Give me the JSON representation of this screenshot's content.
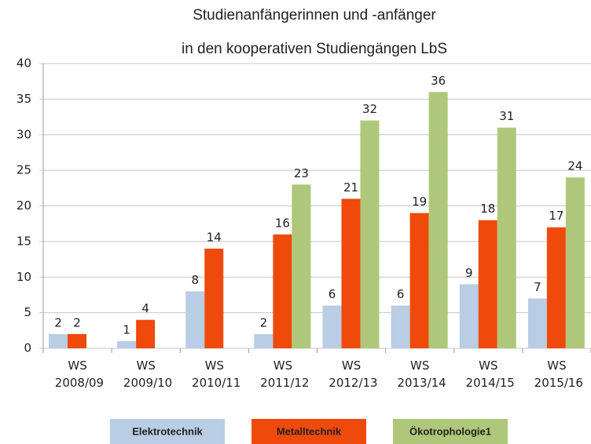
{
  "chart_data": {
    "type": "bar",
    "title": [
      "Studienanfängerinnen und -anfänger",
      "in den kooperativen Studiengängen LbS"
    ],
    "categories": [
      "WS 2008/09",
      "WS 2009/10",
      "WS 2010/11",
      "WS 2011/12",
      "WS 2012/13",
      "WS 2013/14",
      "WS 2014/15",
      "WS 2015/16"
    ],
    "series": [
      {
        "name": "Elektrotechnik",
        "color": "#b9cde5",
        "values": [
          2,
          1,
          8,
          2,
          6,
          6,
          9,
          7
        ]
      },
      {
        "name": "Metalltechnik",
        "color": "#ef4a0b",
        "values": [
          2,
          4,
          14,
          16,
          21,
          19,
          18,
          17
        ]
      },
      {
        "name": "Ökotrophologie1",
        "color": "#afc77a",
        "values": [
          null,
          null,
          null,
          23,
          32,
          36,
          31,
          24
        ]
      }
    ],
    "ylim": [
      0,
      40
    ],
    "yticks": [
      0,
      5,
      10,
      15,
      20,
      25,
      30,
      35,
      40
    ],
    "grid": true,
    "legend": "bottom"
  }
}
